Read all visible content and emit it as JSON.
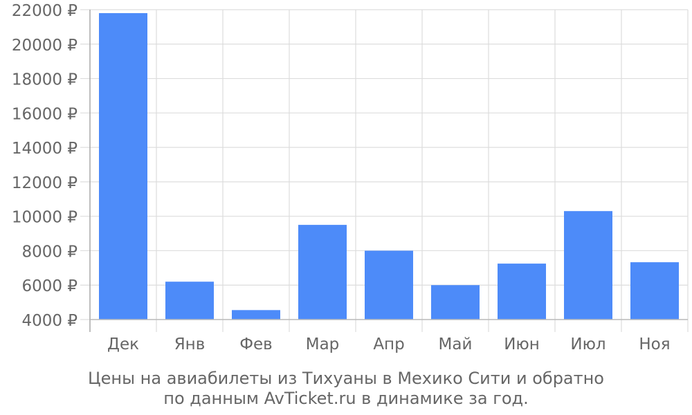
{
  "chart_data": {
    "type": "bar",
    "categories": [
      "Дек",
      "Янв",
      "Фев",
      "Мар",
      "Апр",
      "Май",
      "Июн",
      "Июл",
      "Ноя"
    ],
    "values": [
      21800,
      6200,
      4550,
      9500,
      8000,
      6000,
      7250,
      10300,
      7330
    ],
    "ylim": [
      4000,
      22000
    ],
    "yticks": [
      "4000 ₽",
      "6000 ₽",
      "8000 ₽",
      "10000 ₽",
      "12000 ₽",
      "14000 ₽",
      "16000 ₽",
      "18000 ₽",
      "20000 ₽",
      "22000 ₽"
    ],
    "grid": true,
    "bar_color": "#4d8bf9",
    "title_lines": [
      "Цены на авиабилеты из Тихуаны в Мехико Сити и обратно",
      "по данным AvTicket.ru в динамике за год."
    ]
  }
}
